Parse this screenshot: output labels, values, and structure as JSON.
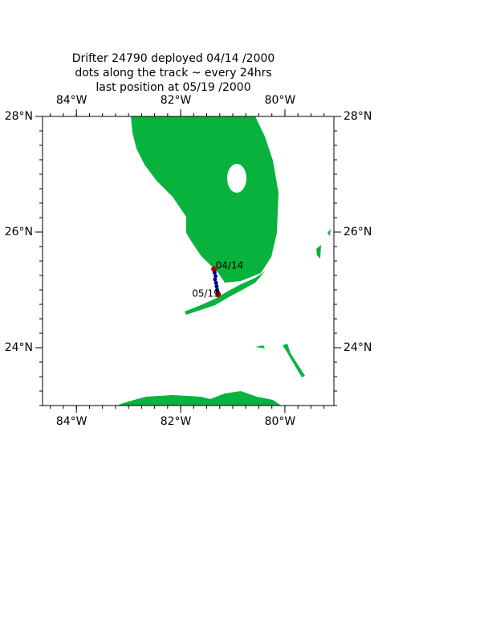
{
  "chart_data": {
    "type": "map",
    "title": [
      "Drifter 24790  deployed  04/14 /2000",
      "dots along the track ~ every 24hrs",
      "last position at 05/19 /2000"
    ],
    "xlim": [
      -84.65,
      -79.06
    ],
    "ylim": [
      23,
      28
    ],
    "xticks": [
      {
        "value": -84,
        "label": "84°W"
      },
      {
        "value": -82,
        "label": "82°W"
      },
      {
        "value": -80,
        "label": "80°W"
      }
    ],
    "yticks": [
      {
        "value": 24,
        "label": "24°N"
      },
      {
        "value": 26,
        "label": "26°N"
      },
      {
        "value": 28,
        "label": "28°N"
      }
    ],
    "land_color": "#07b33c",
    "track": {
      "lon": [
        -81.36,
        -81.35,
        -81.33,
        -81.34,
        -81.32,
        -81.31,
        -81.3,
        -81.29,
        -81.28
      ],
      "lat": [
        25.36,
        25.3,
        25.24,
        25.18,
        25.12,
        25.06,
        25.0,
        24.96,
        24.92
      ],
      "color": "#00008b",
      "end_color": "#b00000"
    },
    "annotations": [
      "04/14",
      "05/19"
    ]
  }
}
